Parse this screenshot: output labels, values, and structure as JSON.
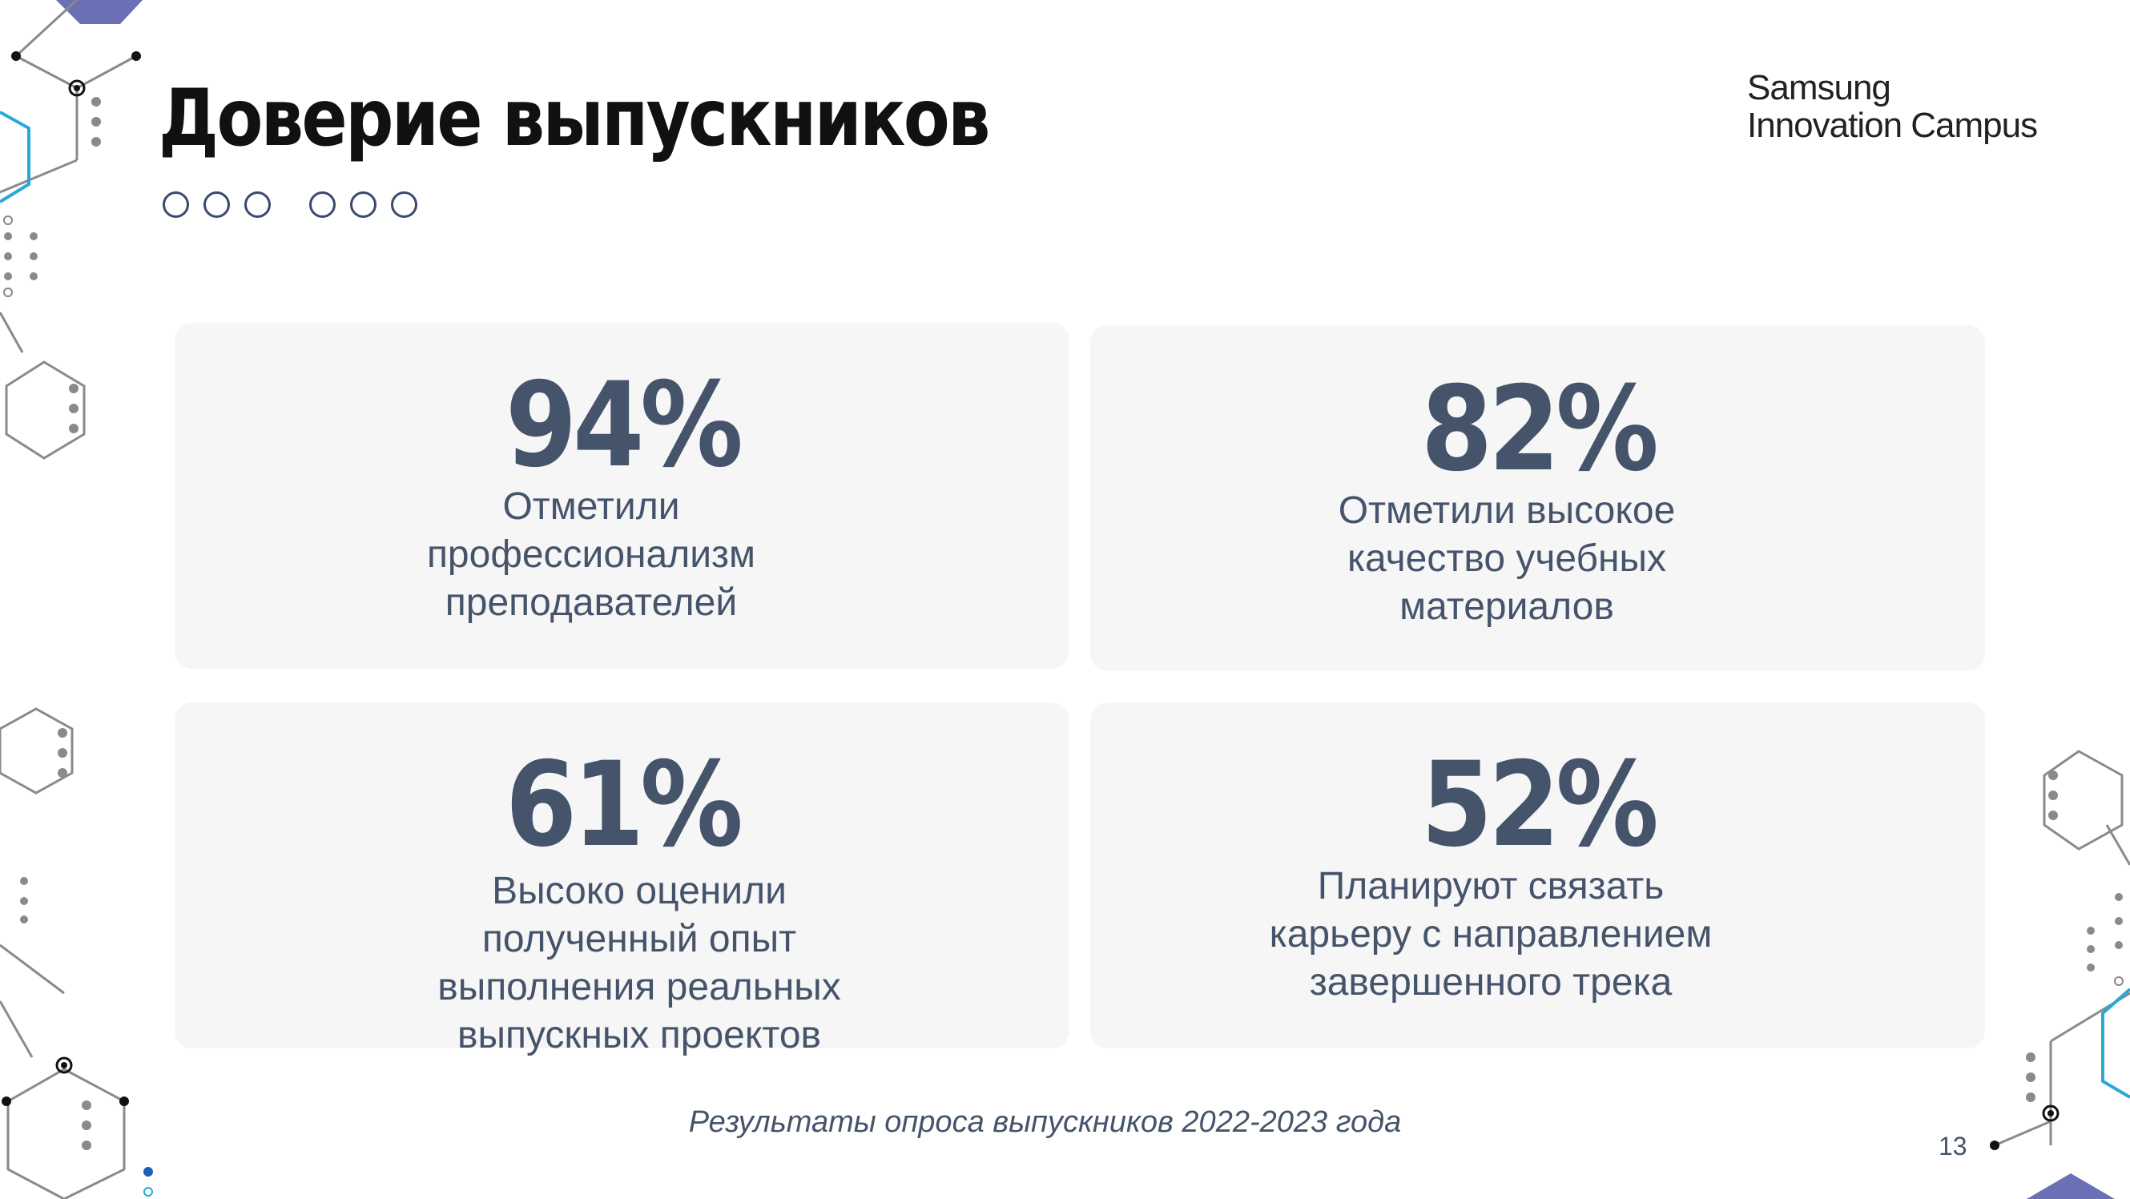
{
  "slide": {
    "title": "Доверие выпускников",
    "logo_line1": "Samsung",
    "logo_line2": "Innovation Campus",
    "footer_note": "Результаты опроса выпускников 2022-2023 года",
    "page_number": "13"
  },
  "stats": [
    {
      "value": "94%",
      "description": "Отметили\nпрофессионализм\nпреподавателей"
    },
    {
      "value": "82%",
      "description": "Отметили высокое\nкачество учебных\nматериалов"
    },
    {
      "value": "61%",
      "description": "Высоко оценили\nполученный опыт\nвыполнения реальных\nвыпускных проектов"
    },
    {
      "value": "52%",
      "description": "Планируют связать\nкарьеру с направлением\nзавершенного трека"
    }
  ],
  "colors": {
    "title": "#111111",
    "stat_text": "#46546b",
    "card_bg": "#f6f6f7",
    "decor_accent": "#6b6fb5",
    "decor_cyan": "#29a8d8"
  }
}
